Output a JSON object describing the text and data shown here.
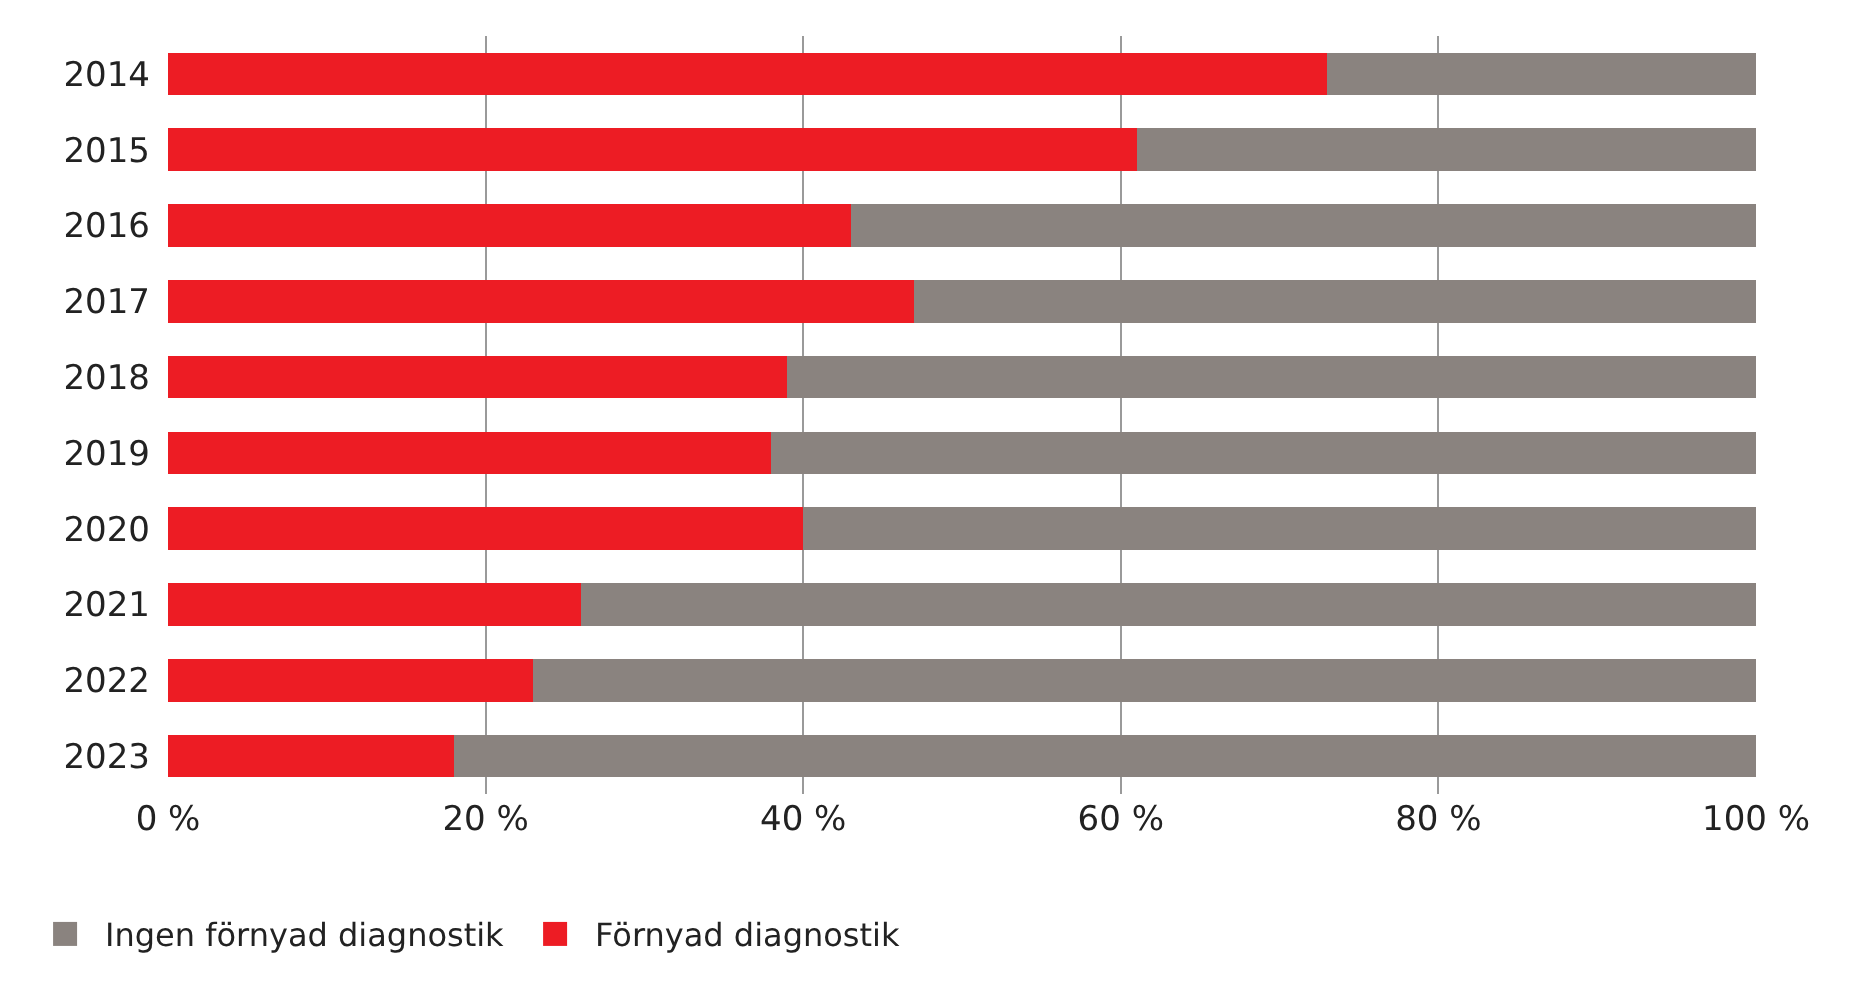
{
  "chart_data": {
    "type": "bar",
    "orientation": "horizontal",
    "stacked": true,
    "categories": [
      "2014",
      "2015",
      "2016",
      "2017",
      "2018",
      "2019",
      "2020",
      "2021",
      "2022",
      "2023"
    ],
    "series": [
      {
        "name": "Förnyad diagnostik",
        "color": "#ed1c24",
        "values": [
          73,
          61,
          43,
          47,
          39,
          38,
          40,
          26,
          23,
          18
        ]
      },
      {
        "name": "Ingen förnyad diagnostik",
        "color": "#8a837f",
        "values": [
          27,
          39,
          57,
          53,
          61,
          62,
          60,
          74,
          77,
          82
        ]
      }
    ],
    "xlim": [
      0,
      100
    ],
    "xticks": [
      {
        "value": 0,
        "label": "0 %"
      },
      {
        "value": 20,
        "label": "20 %"
      },
      {
        "value": 40,
        "label": "40 %"
      },
      {
        "value": 60,
        "label": "60 %"
      },
      {
        "value": 80,
        "label": "80 %"
      },
      {
        "value": 100,
        "label": "100 %"
      }
    ],
    "grid": "x",
    "legend": "bottom left"
  }
}
